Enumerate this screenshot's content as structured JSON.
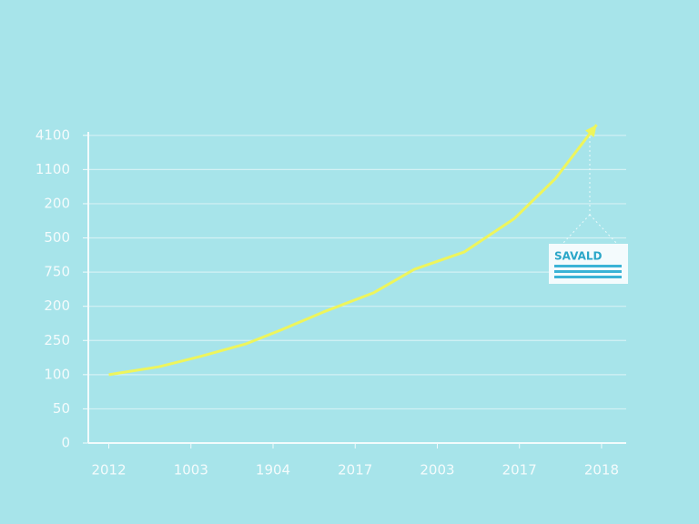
{
  "chart_data": {
    "type": "line",
    "annotation": "SAVALD",
    "xlim": [
      -0.25,
      6.3
    ],
    "xticks": [
      {
        "value": 0,
        "label": "2012"
      },
      {
        "value": 1,
        "label": "1003"
      },
      {
        "value": 2,
        "label": "1904"
      },
      {
        "value": 3,
        "label": "2017"
      },
      {
        "value": 4,
        "label": "2003"
      },
      {
        "value": 5,
        "label": "2017"
      },
      {
        "value": 6,
        "label": "2018"
      }
    ],
    "ylim": [
      0,
      9.5
    ],
    "yticks": [
      {
        "value": 0,
        "label": "0"
      },
      {
        "value": 1,
        "label": "50"
      },
      {
        "value": 2,
        "label": "100"
      },
      {
        "value": 3,
        "label": "250"
      },
      {
        "value": 4,
        "label": "200"
      },
      {
        "value": 5,
        "label": "750"
      },
      {
        "value": 6,
        "label": "500"
      },
      {
        "value": 7,
        "label": "200"
      },
      {
        "value": 8,
        "label": "1100"
      },
      {
        "value": 9,
        "label": "4100"
      }
    ],
    "grid": true,
    "series": [
      {
        "color": "#eef55c",
        "x": [
          0,
          0.61,
          1.11,
          1.67,
          2.11,
          2.61,
          3.22,
          3.72,
          4.33,
          4.94,
          5.44,
          5.94
        ],
        "values": [
          2.0,
          2.23,
          2.53,
          2.9,
          3.32,
          3.83,
          4.39,
          5.08,
          5.59,
          6.57,
          7.74,
          9.31
        ]
      }
    ]
  }
}
